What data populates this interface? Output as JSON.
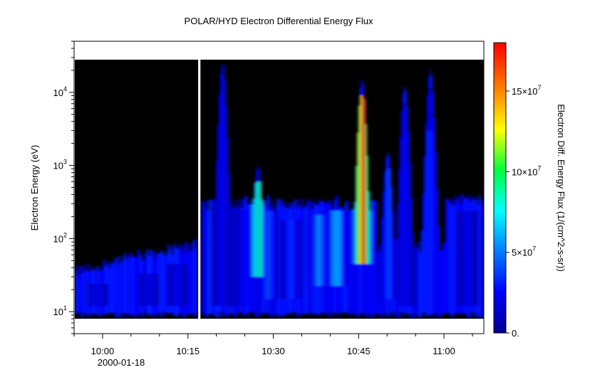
{
  "chart_data": {
    "type": "heatmap",
    "title": "POLAR/HYD  Electron Differential Energy Flux",
    "ylabel": "Electron Energy (eV)",
    "colorbar_label": "Electron Diff. Energy Flux (1/(cm^2-s-sr))",
    "y_scale": "log",
    "xlim_minutes": [
      595,
      667
    ],
    "ylim": [
      5,
      50000
    ],
    "x_ticks": [
      {
        "value": 600,
        "label": "10:00"
      },
      {
        "value": 615,
        "label": "10:15"
      },
      {
        "value": 630,
        "label": "10:30"
      },
      {
        "value": 645,
        "label": "10:45"
      },
      {
        "value": 660,
        "label": "11:00"
      }
    ],
    "x_date_label": "2000-01-18",
    "y_ticks": [
      {
        "value": 10,
        "base": "10",
        "exp": "1"
      },
      {
        "value": 100,
        "base": "10",
        "exp": "2"
      },
      {
        "value": 1000,
        "base": "10",
        "exp": "3"
      },
      {
        "value": 10000,
        "base": "10",
        "exp": "4"
      }
    ],
    "colorbar_range": [
      0,
      180000000
    ],
    "colorbar_ticks": [
      {
        "value": 0,
        "base": "0.",
        "exp": ""
      },
      {
        "value": 50000000,
        "base": "5×10",
        "exp": "7"
      },
      {
        "value": 100000000,
        "base": "10×10",
        "exp": "7"
      },
      {
        "value": 150000000,
        "base": "15×10",
        "exp": "7"
      }
    ],
    "data_gap_minutes": [
      616.8,
      617.2
    ],
    "data_energy_range": [
      8,
      28000
    ],
    "background_color": "#000000",
    "colormap": "rainbow",
    "flux_features": [
      {
        "time": 599,
        "emin": 8,
        "emax": 40,
        "flux": 20000000
      },
      {
        "time": 608,
        "emin": 8,
        "emax": 55,
        "flux": 20000000
      },
      {
        "time": 613,
        "emin": 8,
        "emax": 75,
        "flux": 20000000
      },
      {
        "time": 621,
        "emin": 8,
        "emax": 25000,
        "flux": 22000000
      },
      {
        "time": 625,
        "emin": 8,
        "emax": 400,
        "flux": 30000000
      },
      {
        "time": 627.2,
        "emin": 20,
        "emax": 1000,
        "flux": 95000000
      },
      {
        "time": 629,
        "emin": 10,
        "emax": 400,
        "flux": 40000000
      },
      {
        "time": 633,
        "emin": 10,
        "emax": 300,
        "flux": 35000000
      },
      {
        "time": 638,
        "emin": 15,
        "emax": 350,
        "flux": 55000000
      },
      {
        "time": 641,
        "emin": 15,
        "emax": 400,
        "flux": 65000000
      },
      {
        "time": 645.5,
        "emin": 30,
        "emax": 15000,
        "flux": 160000000
      },
      {
        "time": 650,
        "emin": 10,
        "emax": 1500,
        "flux": 40000000
      },
      {
        "time": 653,
        "emin": 8,
        "emax": 12000,
        "flux": 22000000
      },
      {
        "time": 657.5,
        "emin": 2000,
        "emax": 20000,
        "flux": 20000000
      },
      {
        "time": 664,
        "emin": 8,
        "emax": 400,
        "flux": 20000000
      }
    ]
  }
}
